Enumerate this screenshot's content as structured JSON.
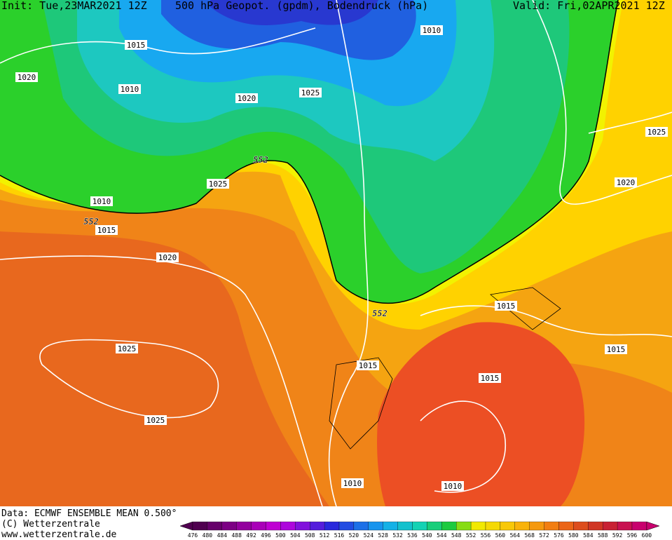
{
  "header": {
    "init": "Init: Tue,23MAR2021 12Z",
    "title": "500 hPa Geopot. (gpdm), Bodendruck (hPa)",
    "valid": "Valid: Fri,02APR2021 12Z"
  },
  "map_labels": [
    "1010",
    "1015",
    "1020",
    "1010",
    "1020",
    "1025",
    "1025",
    "552",
    "1025",
    "1020",
    "1010",
    "552",
    "1015",
    "1020",
    "1015",
    "552",
    "1025",
    "1015",
    "1015",
    "1015",
    "1025",
    "1010",
    "1010"
  ],
  "footer": {
    "data": "Data: ECMWF ENSEMBLE MEAN 0.500°",
    "copyright": "(C) Wetterzentrale",
    "url": "www.wetterzentrale.de"
  },
  "colorbar": {
    "labels": [
      "476",
      "480",
      "484",
      "488",
      "492",
      "496",
      "500",
      "504",
      "508",
      "512",
      "516",
      "520",
      "524",
      "528",
      "532",
      "536",
      "540",
      "544",
      "548",
      "552",
      "556",
      "560",
      "564",
      "568",
      "572",
      "576",
      "580",
      "584",
      "588",
      "592",
      "596",
      "600"
    ]
  }
}
